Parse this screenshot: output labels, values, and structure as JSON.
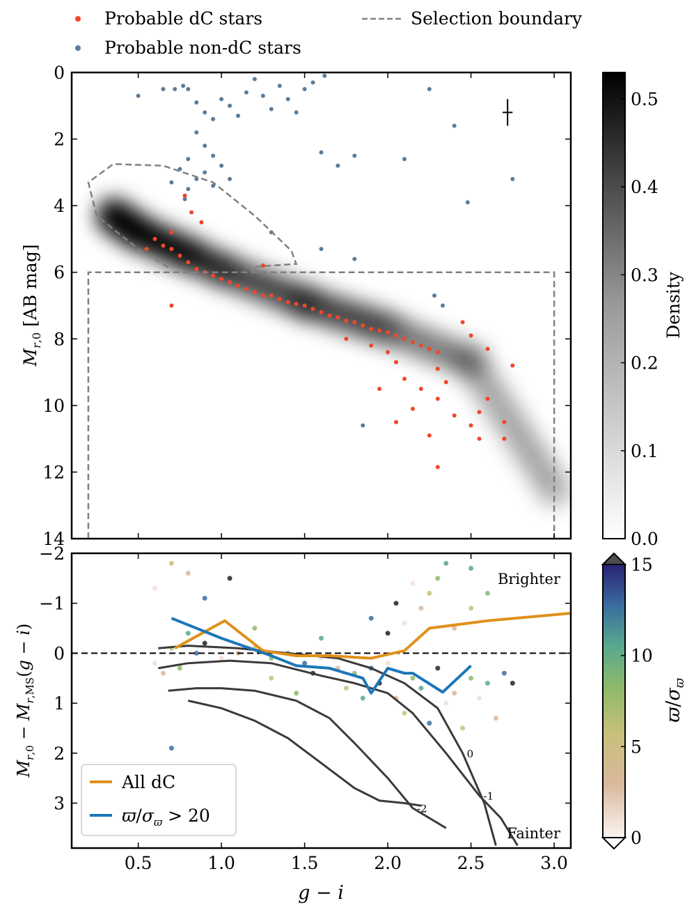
{
  "legend": {
    "dc_label": "Probable dC stars",
    "nondc_label": "Probable non-dC stars",
    "boundary_label": "Selection boundary",
    "dc_color": "#f0472a",
    "nondc_color": "#5b7c99",
    "boundary_color": "#808080"
  },
  "chart_data": [
    {
      "type": "scatter",
      "title": "",
      "xlabel": "g − i",
      "ylabel": "M_{r,0} [AB mag]",
      "xlim": [
        0.1,
        3.1
      ],
      "ylim": [
        14,
        0
      ],
      "y_inverted": true,
      "y_ticks": [
        "0",
        "2",
        "4",
        "6",
        "8",
        "10",
        "12",
        "14"
      ],
      "y_tick_values": [
        0,
        2,
        4,
        6,
        8,
        10,
        12,
        14
      ],
      "error_bar": {
        "x": 2.72,
        "y": 1.2,
        "xerr": 0.03,
        "yerr": 0.4
      },
      "density_ridge": [
        [
          0.35,
          4.3
        ],
        [
          0.5,
          4.8
        ],
        [
          1.0,
          5.9
        ],
        [
          1.5,
          6.9
        ],
        [
          2.0,
          7.7
        ],
        [
          2.5,
          8.7
        ],
        [
          3.0,
          12.5
        ]
      ],
      "selection_boundary": {
        "ellipse_curve": [
          [
            0.68,
            5.85
          ],
          [
            0.5,
            5.3
          ],
          [
            0.25,
            4.3
          ],
          [
            0.2,
            3.3
          ],
          [
            0.35,
            2.75
          ],
          [
            0.65,
            2.8
          ],
          [
            0.95,
            3.3
          ],
          [
            1.2,
            4.3
          ],
          [
            1.42,
            5.35
          ],
          [
            1.45,
            5.75
          ],
          [
            1.15,
            5.85
          ],
          [
            1.2,
            6.0
          ]
        ],
        "box": {
          "x": [
            0.2,
            3.0
          ],
          "y": [
            6,
            14
          ]
        }
      },
      "series": [
        {
          "name": "Probable non-dC stars",
          "points": [
            [
              0.5,
              0.7
            ],
            [
              0.65,
              0.5
            ],
            [
              0.72,
              0.5
            ],
            [
              0.77,
              0.4
            ],
            [
              0.8,
              0.5
            ],
            [
              0.85,
              0.9
            ],
            [
              0.9,
              1.2
            ],
            [
              0.95,
              1.4
            ],
            [
              1.0,
              0.8
            ],
            [
              1.05,
              1.0
            ],
            [
              1.1,
              1.3
            ],
            [
              1.15,
              0.6
            ],
            [
              1.2,
              0.2
            ],
            [
              1.25,
              0.7
            ],
            [
              1.3,
              1.1
            ],
            [
              1.35,
              0.4
            ],
            [
              1.4,
              0.8
            ],
            [
              1.45,
              1.2
            ],
            [
              1.5,
              0.5
            ],
            [
              1.55,
              0.3
            ],
            [
              1.62,
              0.1
            ],
            [
              0.85,
              1.8
            ],
            [
              0.9,
              2.2
            ],
            [
              0.95,
              2.5
            ],
            [
              1.0,
              2.8
            ],
            [
              0.9,
              3.0
            ],
            [
              0.85,
              3.2
            ],
            [
              0.95,
              3.4
            ],
            [
              1.05,
              3.2
            ],
            [
              0.8,
              2.6
            ],
            [
              0.75,
              2.9
            ],
            [
              0.7,
              3.3
            ],
            [
              0.8,
              3.5
            ],
            [
              0.78,
              3.8
            ],
            [
              1.6,
              2.4
            ],
            [
              1.8,
              2.5
            ],
            [
              2.1,
              2.6
            ],
            [
              1.8,
              5.6
            ],
            [
              1.3,
              4.8
            ],
            [
              1.6,
              5.3
            ],
            [
              2.25,
              0.5
            ],
            [
              2.4,
              1.6
            ],
            [
              2.75,
              3.2
            ],
            [
              1.85,
              10.6
            ],
            [
              2.28,
              6.7
            ],
            [
              2.33,
              7.0
            ],
            [
              2.48,
              3.9
            ],
            [
              1.7,
              2.8
            ]
          ]
        },
        {
          "name": "Probable dC stars",
          "points": [
            [
              0.6,
              5.0
            ],
            [
              0.65,
              5.2
            ],
            [
              0.7,
              5.3
            ],
            [
              0.75,
              5.5
            ],
            [
              0.8,
              5.7
            ],
            [
              0.85,
              5.9
            ],
            [
              0.9,
              6.0
            ],
            [
              0.95,
              6.1
            ],
            [
              1.0,
              6.2
            ],
            [
              1.05,
              6.3
            ],
            [
              1.1,
              6.4
            ],
            [
              1.15,
              6.5
            ],
            [
              1.2,
              6.6
            ],
            [
              1.25,
              6.7
            ],
            [
              1.3,
              6.7
            ],
            [
              1.35,
              6.8
            ],
            [
              1.4,
              6.9
            ],
            [
              1.45,
              6.95
            ],
            [
              1.5,
              7.0
            ],
            [
              1.55,
              7.1
            ],
            [
              1.6,
              7.2
            ],
            [
              1.65,
              7.3
            ],
            [
              1.7,
              7.35
            ],
            [
              1.75,
              7.45
            ],
            [
              1.8,
              7.5
            ],
            [
              1.85,
              7.6
            ],
            [
              1.9,
              7.7
            ],
            [
              1.95,
              7.75
            ],
            [
              2.0,
              7.8
            ],
            [
              2.05,
              7.9
            ],
            [
              2.1,
              8.0
            ],
            [
              2.15,
              8.1
            ],
            [
              2.2,
              8.2
            ],
            [
              2.25,
              8.3
            ],
            [
              2.3,
              8.4
            ],
            [
              0.78,
              3.7
            ],
            [
              0.82,
              4.2
            ],
            [
              0.88,
              4.5
            ],
            [
              0.7,
              4.8
            ],
            [
              0.55,
              5.3
            ],
            [
              0.7,
              7.0
            ],
            [
              1.25,
              5.8
            ],
            [
              1.75,
              8.0
            ],
            [
              1.9,
              8.2
            ],
            [
              2.0,
              8.4
            ],
            [
              2.05,
              8.7
            ],
            [
              2.1,
              9.2
            ],
            [
              2.2,
              9.5
            ],
            [
              2.3,
              9.8
            ],
            [
              2.4,
              10.3
            ],
            [
              2.5,
              10.6
            ],
            [
              2.55,
              11.0
            ],
            [
              2.7,
              10.5
            ],
            [
              2.75,
              8.8
            ],
            [
              2.6,
              8.3
            ],
            [
              2.45,
              7.5
            ],
            [
              2.5,
              7.9
            ],
            [
              2.3,
              8.9
            ],
            [
              2.35,
              9.3
            ],
            [
              2.15,
              10.1
            ],
            [
              2.25,
              10.9
            ],
            [
              2.3,
              11.85
            ],
            [
              1.95,
              9.5
            ],
            [
              2.05,
              10.5
            ],
            [
              2.6,
              9.8
            ],
            [
              2.7,
              11.0
            ],
            [
              2.55,
              10.2
            ]
          ]
        }
      ],
      "colorbar": {
        "label": "Density",
        "ticks": [
          "0.0",
          "0.1",
          "0.2",
          "0.3",
          "0.4",
          "0.5"
        ],
        "tick_values": [
          0.0,
          0.1,
          0.2,
          0.3,
          0.4,
          0.5
        ],
        "range": [
          0.0,
          0.53
        ]
      }
    },
    {
      "type": "line",
      "title": "",
      "xlabel": "g − i",
      "ylabel": "M_{r,0} − M_{r,MS}(g − i)",
      "xlim": [
        0.1,
        3.1
      ],
      "ylim": [
        3.9,
        -2
      ],
      "y_inverted": true,
      "x_ticks": [
        "0.5",
        "1.0",
        "1.5",
        "2.0",
        "2.5",
        "3.0"
      ],
      "x_tick_values": [
        0.5,
        1.0,
        1.5,
        2.0,
        2.5,
        3.0
      ],
      "y_ticks": [
        "−2",
        "−1",
        "0",
        "1",
        "2",
        "3"
      ],
      "y_tick_values": [
        -2,
        -1,
        0,
        1,
        2,
        3
      ],
      "annotations": {
        "brighter": "Brighter",
        "fainter": "Fainter"
      },
      "reference_line": 0,
      "series": [
        {
          "name": "All dC",
          "color": "#e0901a",
          "points": [
            [
              0.72,
              -0.1
            ],
            [
              1.02,
              -0.65
            ],
            [
              1.25,
              -0.05
            ],
            [
              1.45,
              0.05
            ],
            [
              1.65,
              0.05
            ],
            [
              1.9,
              0.1
            ],
            [
              2.1,
              -0.05
            ],
            [
              2.25,
              -0.5
            ],
            [
              2.6,
              -0.65
            ],
            [
              3.1,
              -0.8
            ]
          ]
        },
        {
          "name": "ϖ/σ_ϖ > 20",
          "color": "#1c76b8",
          "points": [
            [
              0.7,
              -0.7
            ],
            [
              1.0,
              -0.3
            ],
            [
              1.3,
              0.05
            ],
            [
              1.45,
              0.25
            ],
            [
              1.65,
              0.3
            ],
            [
              1.85,
              0.5
            ],
            [
              1.9,
              0.8
            ],
            [
              2.0,
              0.3
            ],
            [
              2.1,
              0.4
            ],
            [
              2.15,
              0.4
            ],
            [
              2.33,
              0.78
            ],
            [
              2.5,
              0.25
            ]
          ]
        }
      ],
      "contours": [
        {
          "label": "0",
          "points": [
            [
              0.62,
              -0.1
            ],
            [
              0.8,
              -0.15
            ],
            [
              1.1,
              -0.1
            ],
            [
              1.4,
              0.0
            ],
            [
              1.7,
              0.1
            ],
            [
              1.9,
              0.3
            ],
            [
              2.1,
              0.6
            ],
            [
              2.3,
              1.1
            ],
            [
              2.45,
              2.0
            ],
            [
              2.58,
              3.0
            ],
            [
              2.65,
              3.85
            ]
          ]
        },
        {
          "label": "-1",
          "points": [
            [
              0.62,
              0.3
            ],
            [
              0.8,
              0.2
            ],
            [
              1.05,
              0.15
            ],
            [
              1.3,
              0.2
            ],
            [
              1.6,
              0.45
            ],
            [
              1.8,
              0.6
            ],
            [
              2.0,
              0.8
            ],
            [
              2.15,
              1.2
            ],
            [
              2.35,
              2.0
            ],
            [
              2.55,
              2.85
            ],
            [
              2.68,
              3.3
            ],
            [
              2.78,
              3.85
            ]
          ]
        },
        {
          "label": "-2",
          "points": [
            [
              0.68,
              0.75
            ],
            [
              0.85,
              0.7
            ],
            [
              1.0,
              0.7
            ],
            [
              1.2,
              0.75
            ],
            [
              1.45,
              0.95
            ],
            [
              1.65,
              1.3
            ],
            [
              1.8,
              1.8
            ],
            [
              2.0,
              2.5
            ],
            [
              2.15,
              3.1
            ],
            [
              2.35,
              3.5
            ]
          ]
        },
        {
          "label": "",
          "points": [
            [
              0.8,
              0.95
            ],
            [
              1.0,
              1.1
            ],
            [
              1.2,
              1.35
            ],
            [
              1.4,
              1.7
            ],
            [
              1.6,
              2.2
            ],
            [
              1.8,
              2.7
            ],
            [
              1.95,
              2.95
            ],
            [
              2.1,
              3.0
            ],
            [
              2.2,
              3.05
            ]
          ]
        }
      ],
      "scatter_points": [
        [
          0.6,
          0.2
        ],
        [
          0.65,
          0.4
        ],
        [
          0.7,
          -0.1
        ],
        [
          0.75,
          0.3
        ],
        [
          0.8,
          -0.4
        ],
        [
          0.85,
          0.0
        ],
        [
          0.9,
          -0.2
        ],
        [
          1.0,
          0.1
        ],
        [
          1.1,
          0.0
        ],
        [
          1.2,
          -0.1
        ],
        [
          1.3,
          0.1
        ],
        [
          1.4,
          0.0
        ],
        [
          1.5,
          0.2
        ],
        [
          1.55,
          0.4
        ],
        [
          1.6,
          0.1
        ],
        [
          1.7,
          0.3
        ],
        [
          1.75,
          0.7
        ],
        [
          1.8,
          0.4
        ],
        [
          1.85,
          0.9
        ],
        [
          1.9,
          0.3
        ],
        [
          1.95,
          0.6
        ],
        [
          2.0,
          0.2
        ],
        [
          2.05,
          0.9
        ],
        [
          2.1,
          1.2
        ],
        [
          2.15,
          0.5
        ],
        [
          2.2,
          0.7
        ],
        [
          2.25,
          1.4
        ],
        [
          2.3,
          0.3
        ],
        [
          2.35,
          1.0
        ],
        [
          2.4,
          0.8
        ],
        [
          2.45,
          1.5
        ],
        [
          2.5,
          0.5
        ],
        [
          2.6,
          0.6
        ],
        [
          2.7,
          0.4
        ],
        [
          2.0,
          -0.4
        ],
        [
          2.1,
          -0.6
        ],
        [
          2.2,
          -0.9
        ],
        [
          2.25,
          -1.2
        ],
        [
          2.3,
          -1.5
        ],
        [
          2.35,
          -1.8
        ],
        [
          1.9,
          -0.7
        ],
        [
          2.05,
          -1.0
        ],
        [
          2.15,
          -1.4
        ],
        [
          2.4,
          -0.5
        ],
        [
          2.5,
          -0.9
        ],
        [
          2.6,
          -1.2
        ],
        [
          2.5,
          -1.7
        ],
        [
          0.9,
          -1.1
        ],
        [
          1.05,
          -1.5
        ],
        [
          0.6,
          -1.3
        ],
        [
          0.8,
          -1.6
        ],
        [
          0.7,
          -1.8
        ],
        [
          1.2,
          -0.5
        ],
        [
          1.6,
          -0.3
        ],
        [
          0.7,
          1.9
        ],
        [
          2.75,
          0.6
        ],
        [
          2.55,
          0.9
        ],
        [
          2.65,
          1.3
        ],
        [
          1.3,
          0.5
        ],
        [
          1.45,
          0.8
        ]
      ],
      "colorbar": {
        "label": "ϖ/σ_ϖ",
        "ticks": [
          "0",
          "5",
          "10",
          "15"
        ],
        "tick_values": [
          0,
          5,
          10,
          15
        ],
        "range": [
          0,
          15
        ],
        "extend": "both"
      }
    }
  ]
}
